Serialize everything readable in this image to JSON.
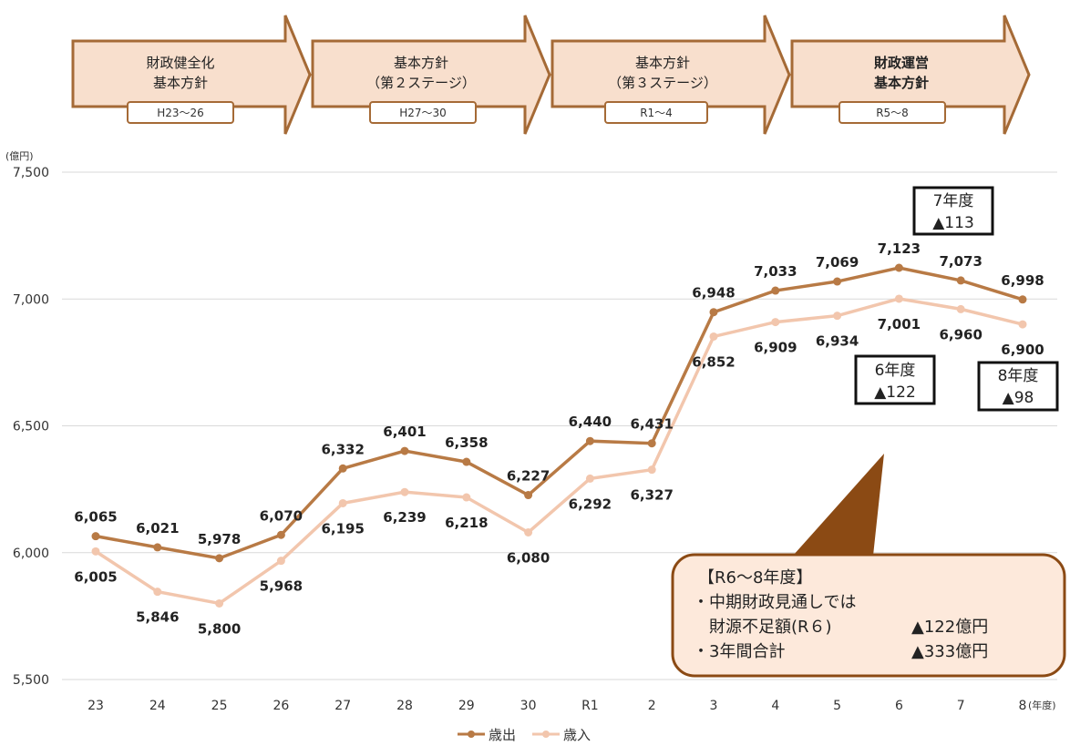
{
  "colors": {
    "expenditure": "#b87a45",
    "revenue": "#f2c6ad",
    "arrow_fill": "#f8dfcd",
    "arrow_stroke": "#a56a36",
    "note_fill": "#fde9db",
    "callout": "#8b4a14",
    "grid": "#d9d9d9"
  },
  "phases": [
    {
      "title_lines": [
        "財政健全化",
        "基本方針"
      ],
      "period": "H23～26",
      "bold": false
    },
    {
      "title_lines": [
        "基本方針",
        "（第２ステージ）"
      ],
      "period": "H27～30",
      "bold": false
    },
    {
      "title_lines": [
        "基本方針",
        "（第３ステージ）"
      ],
      "period": "R1～4",
      "bold": false
    },
    {
      "title_lines": [
        "財政運営",
        "基本方針"
      ],
      "period": "R5～8",
      "bold": true
    }
  ],
  "deficit_boxes": [
    {
      "year": "7年度",
      "amount": "▲113"
    },
    {
      "year": "6年度",
      "amount": "▲122"
    },
    {
      "year": "8年度",
      "amount": "▲98"
    }
  ],
  "note_box": {
    "lines": [
      "【R6～8年度】",
      "・中期財政見通しでは",
      "財源不足額(R６)",
      "・3年間合計"
    ],
    "amounts": [
      "▲122億円",
      "▲333億円"
    ]
  },
  "chart_data": {
    "type": "line",
    "ylabel": "(億円)",
    "xlabel": "(年度)",
    "ylim": [
      5500,
      7500
    ],
    "yticks": [
      5500,
      6000,
      6500,
      7000,
      7500
    ],
    "ytick_labels": [
      "5,500",
      "6,000",
      "6,500",
      "7,000",
      "7,500"
    ],
    "categories": [
      "23",
      "24",
      "25",
      "26",
      "27",
      "28",
      "29",
      "30",
      "R1",
      "2",
      "3",
      "4",
      "5",
      "6",
      "7",
      "8"
    ],
    "grid": true,
    "legend_position": "bottom",
    "series": [
      {
        "name": "歳出",
        "values": [
          6065,
          6021,
          5978,
          6070,
          6332,
          6401,
          6358,
          6227,
          6440,
          6431,
          6948,
          7033,
          7069,
          7123,
          7073,
          6998
        ],
        "labels": [
          "6,065",
          "6,021",
          "5,978",
          "6,070",
          "6,332",
          "6,401",
          "6,358",
          "6,227",
          "6,440",
          "6,431",
          "6,948",
          "7,033",
          "7,069",
          "7,123",
          "7,073",
          "6,998"
        ]
      },
      {
        "name": "歳入",
        "values": [
          6005,
          5846,
          5800,
          5968,
          6195,
          6239,
          6218,
          6080,
          6292,
          6327,
          6852,
          6909,
          6934,
          7001,
          6960,
          6900
        ],
        "labels": [
          "6,005",
          "5,846",
          "5,800",
          "5,968",
          "6,195",
          "6,239",
          "6,218",
          "6,080",
          "6,292",
          "6,327",
          "6,852",
          "6,909",
          "6,934",
          "7,001",
          "6,960",
          "6,900"
        ]
      }
    ]
  }
}
